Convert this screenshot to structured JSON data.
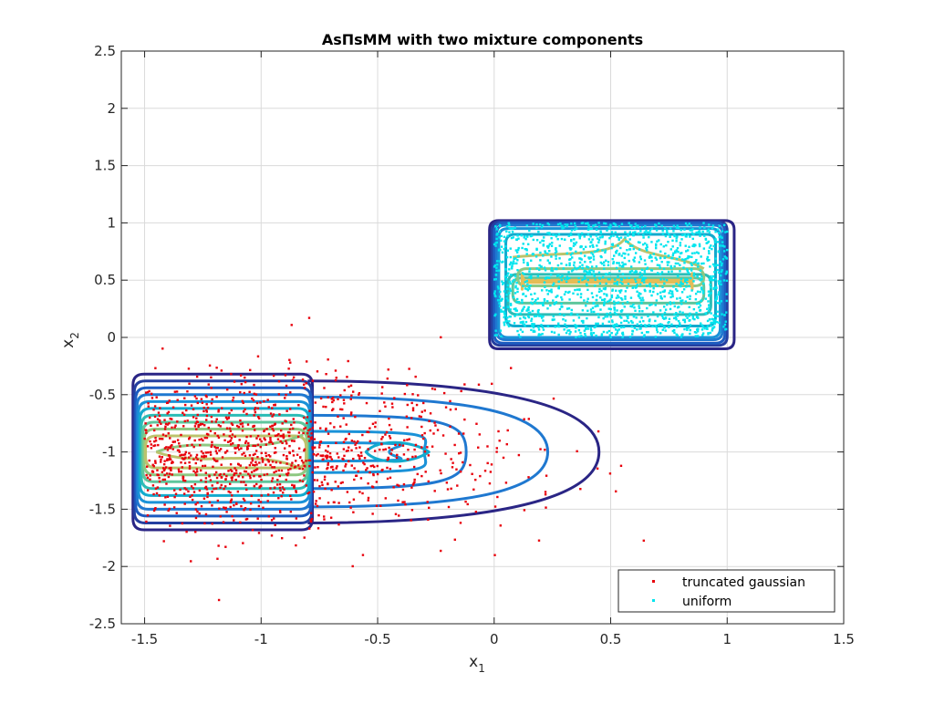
{
  "chart_data": {
    "type": "scatter",
    "title": "AsΠsMM with two mixture components",
    "xlabel": "x",
    "xlabel_sub": "1",
    "ylabel": "x",
    "ylabel_sub": "2",
    "xlim": [
      -1.6,
      1.5
    ],
    "ylim": [
      -2.5,
      2.5
    ],
    "x_ticks": [
      -1.5,
      -1,
      -0.5,
      0,
      0.5,
      1,
      1.5
    ],
    "x_tick_labels": [
      "-1.5",
      "-1",
      "-0.5",
      "0",
      "0.5",
      "1",
      "1.5"
    ],
    "y_ticks": [
      2.5,
      2,
      1.5,
      1,
      0.5,
      0,
      -0.5,
      -1,
      -1.5,
      -2,
      -2.5
    ],
    "y_tick_labels": [
      "2.5",
      "2",
      "1.5",
      "1",
      "0.5",
      "0",
      "-0.5",
      "-1",
      "-1.5",
      "-2",
      "-2.5"
    ],
    "grid": true,
    "legend_position": "bottom-right",
    "series": [
      {
        "name": "truncated gaussian",
        "color": "#e8000b",
        "marker": "square-dot",
        "distribution": {
          "type": "gaussian-truncated",
          "mean": [
            -1.1,
            -1.0
          ],
          "std": [
            0.55,
            0.33
          ],
          "x_min": -1.5,
          "count": 1200
        }
      },
      {
        "name": "uniform",
        "color": "#00e5ee",
        "marker": "square-dot",
        "distribution": {
          "type": "uniform",
          "x_range": [
            0,
            1
          ],
          "y_range": [
            0,
            1
          ],
          "count": 1500
        }
      }
    ],
    "contour_colors": [
      "#2a2585",
      "#243fa0",
      "#1d5cc0",
      "#1f78d0",
      "#1a92d8",
      "#12aacd",
      "#2cbcb6",
      "#5ec69c",
      "#8ec882",
      "#bcc36c",
      "#e5bc56",
      "#f6c93a"
    ]
  }
}
